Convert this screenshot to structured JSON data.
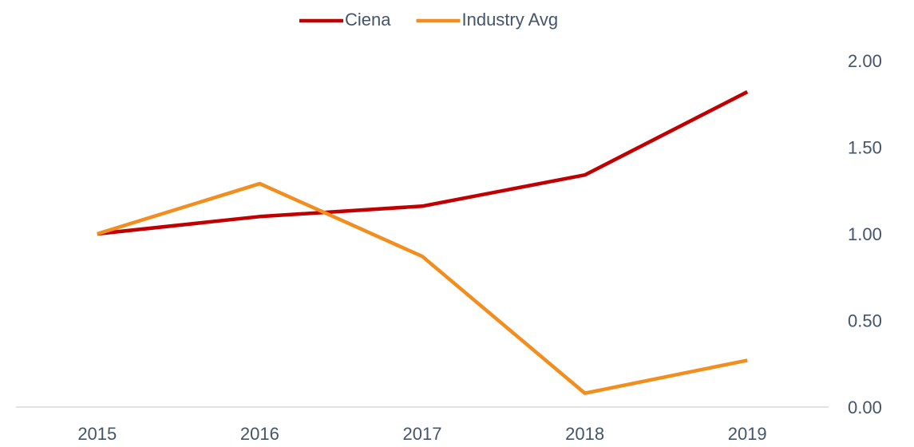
{
  "chart_data": {
    "type": "line",
    "categories": [
      "2015",
      "2016",
      "2017",
      "2018",
      "2019"
    ],
    "series": [
      {
        "name": "Ciena",
        "color": "#c00000",
        "values": [
          1.0,
          1.1,
          1.16,
          1.34,
          1.82
        ]
      },
      {
        "name": "Industry Avg",
        "color": "#f28e1e",
        "values": [
          1.0,
          1.29,
          0.87,
          0.08,
          0.27
        ]
      }
    ],
    "ylim": [
      0,
      2
    ],
    "yticks": [
      {
        "value": 0,
        "label": "0.00"
      },
      {
        "value": 0.5,
        "label": "0.50"
      },
      {
        "value": 1,
        "label": "1.00"
      },
      {
        "value": 1.5,
        "label": "1.50"
      },
      {
        "value": 2,
        "label": "2.00"
      }
    ],
    "legend": "top"
  }
}
